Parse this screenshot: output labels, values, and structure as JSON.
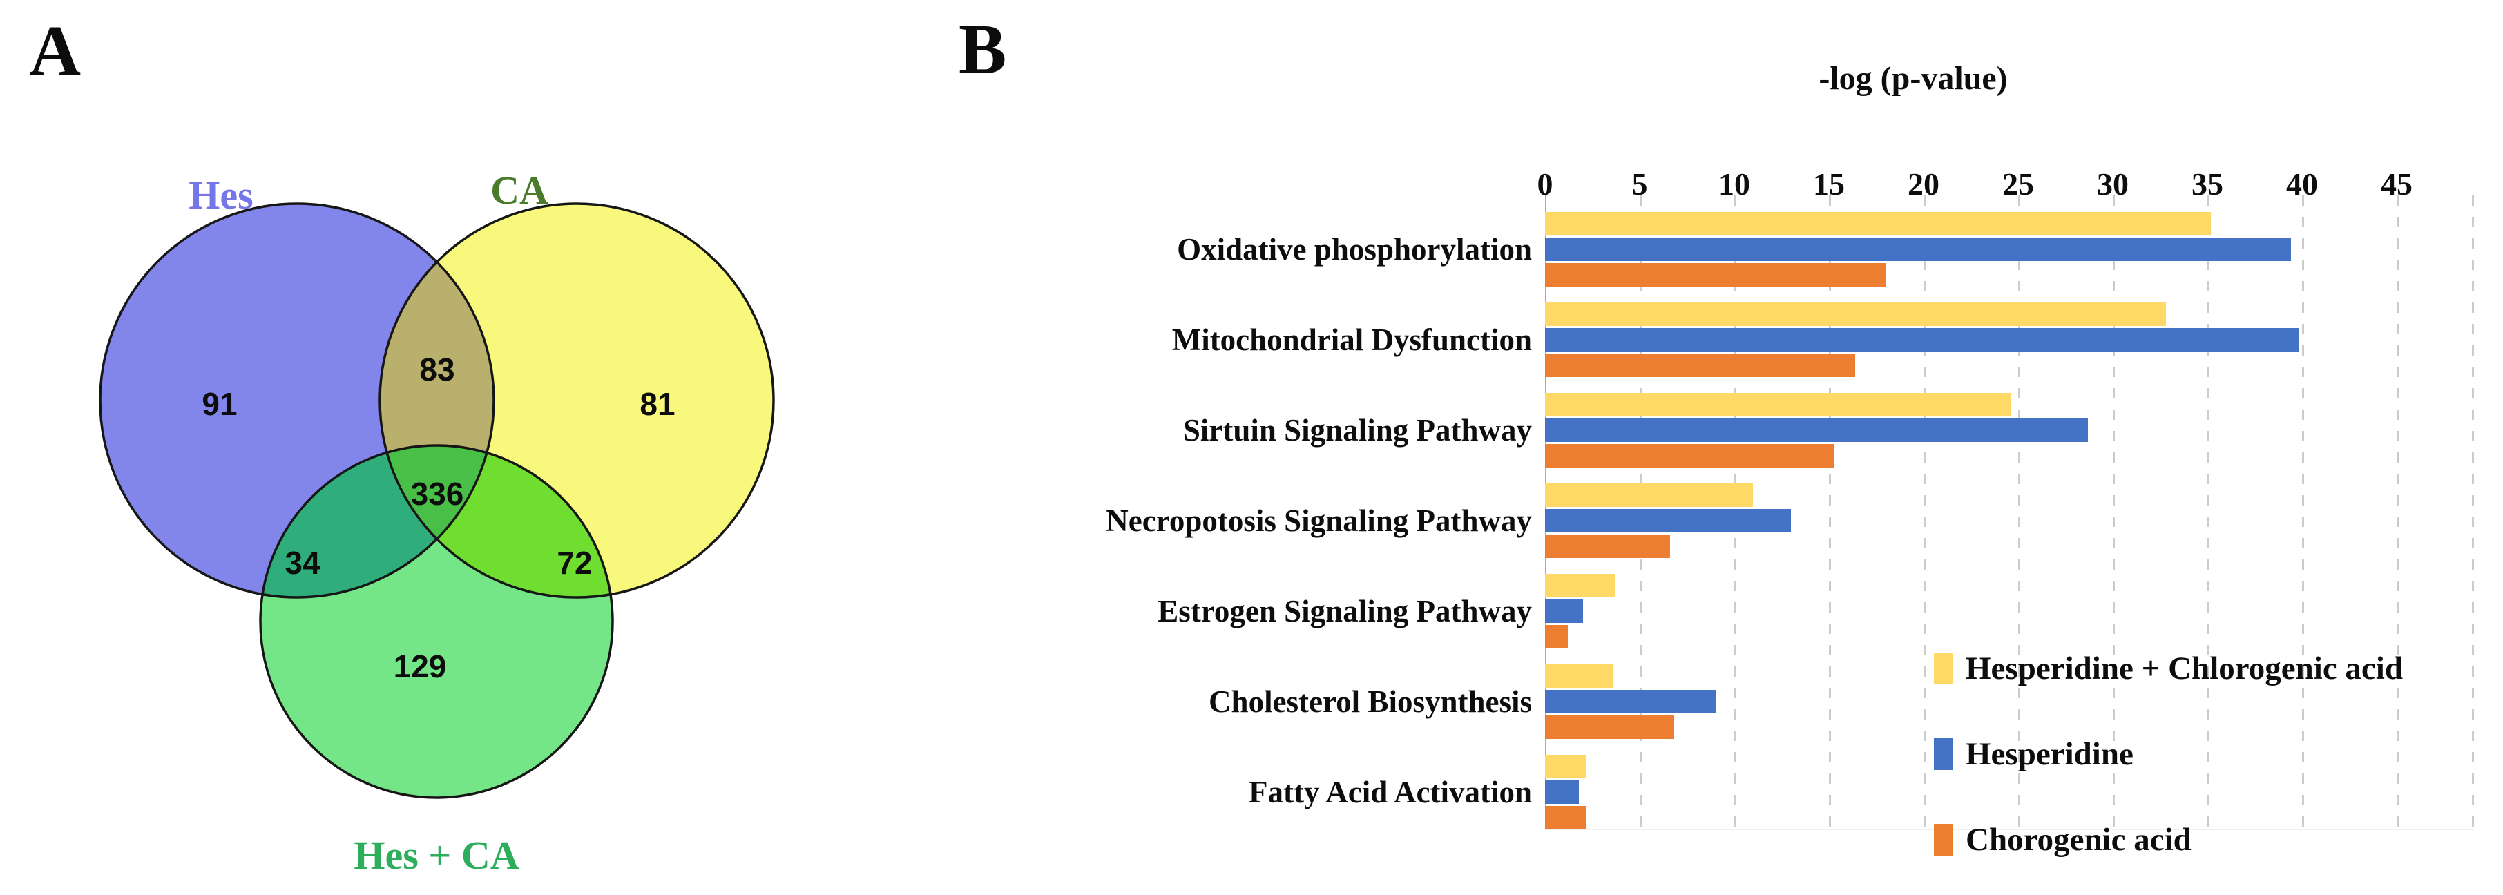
{
  "figure": {
    "panel_a_letter": "A",
    "panel_b_letter": "B"
  },
  "venn": {
    "set_labels": {
      "hes": "Hes",
      "ca": "CA",
      "hes_ca": "Hes + CA"
    },
    "label_colors": {
      "hes": "#7577E8",
      "ca": "#4A7B2B",
      "hes_ca": "#2EAE5C"
    },
    "counts": {
      "hes_only": "91",
      "hes_and_ca": "83",
      "ca_only": "81",
      "all_three": "336",
      "hes_and_green": "34",
      "ca_and_green": "72",
      "green_only": "129"
    },
    "region_colors": {
      "hes": "#8285EA",
      "ca": "#F8F87D",
      "green": "#75E687",
      "hes_ca": "#BAB06E",
      "hes_green": "#2FAE7B",
      "ca_green": "#6FDE31",
      "center": "#49BF47"
    }
  },
  "chart_data": {
    "type": "bar",
    "orientation": "horizontal",
    "title": "-log (p-value)",
    "xlabel": "-log (p-value)",
    "categories": [
      "Oxidative phosphorylation",
      "Mitochondrial Dysfunction",
      "Sirtuin Signaling Pathway",
      "Necropotosis Signaling Pathway",
      "Estrogen Signaling Pathway",
      "Cholesterol Biosynthesis",
      "Fatty Acid Activation"
    ],
    "series": [
      {
        "name": "Hesperidine + Chlorogenic acid",
        "color": "#FFD965",
        "values": [
          35.2,
          32.8,
          24.6,
          11.0,
          3.7,
          3.6,
          2.2
        ]
      },
      {
        "name": "Hesperidine",
        "color": "#4472C4",
        "values": [
          39.4,
          39.8,
          28.7,
          13.0,
          2.0,
          9.0,
          1.8
        ]
      },
      {
        "name": "Chorogenic acid",
        "color": "#ED7D31",
        "values": [
          18.0,
          16.4,
          15.3,
          6.6,
          1.2,
          6.8,
          2.2
        ]
      }
    ],
    "axis": {
      "min": 0,
      "max": 49,
      "tick_max": 45,
      "step": 5,
      "ticks": [
        "0",
        "5",
        "10",
        "15",
        "20",
        "25",
        "30",
        "35",
        "40",
        "45"
      ]
    },
    "grid": "dashed-vertical",
    "legend_position": "right-middle",
    "gridline_color": "#cccccc",
    "axis_line_color": "#ababab"
  }
}
